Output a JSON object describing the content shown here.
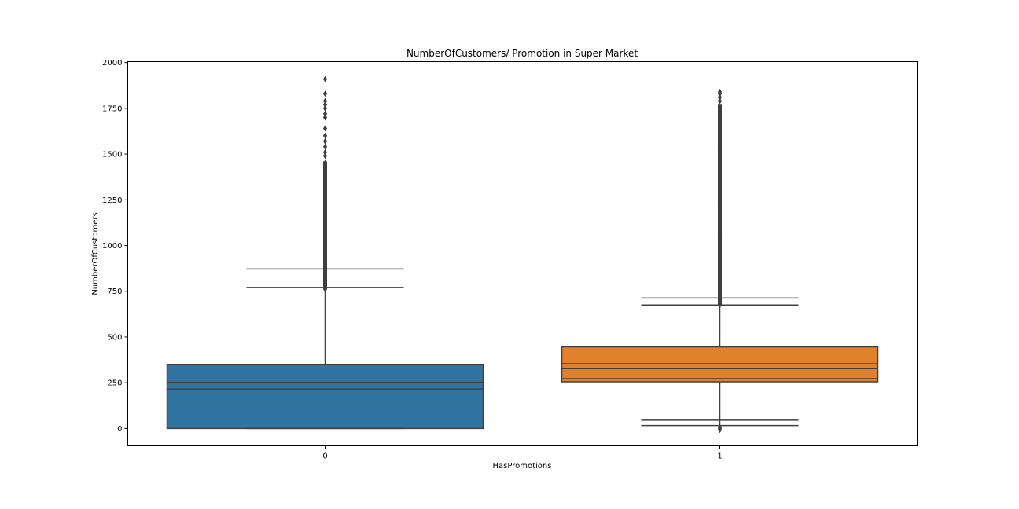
{
  "chart_data": {
    "type": "box",
    "title": "NumberOfCustomers/ Promotion in Super Market",
    "xlabel": "HasPromotions",
    "ylabel": "NumberOfCustomers",
    "categories": [
      "0",
      "1"
    ],
    "ylim": [
      -95,
      2005
    ],
    "yticks": [
      0,
      250,
      500,
      750,
      1000,
      1250,
      1500,
      1750,
      2000
    ],
    "grid": false,
    "legend": "none",
    "colors": {
      "0": "#3274a1",
      "1": "#e1812c",
      "lines": "#3f3f3f"
    },
    "boxes": [
      {
        "category": "0",
        "box_low": 0,
        "box_high": 348,
        "median": 252,
        "inner_line": 216,
        "whisker_low": 0,
        "whisker_high": 761,
        "cap_high_values": [
          770,
          872
        ],
        "cap_low_values": [
          0
        ],
        "outliers_max": 1910,
        "dense_outlier_range": [
          761,
          1460
        ],
        "sparse_outliers": [
          1490,
          1510,
          1540,
          1570,
          1600,
          1640,
          1700,
          1720,
          1750,
          1770,
          1790,
          1830,
          1910
        ]
      },
      {
        "category": "1",
        "box_low": 255,
        "box_high": 446,
        "median": 354,
        "inner_line": 327,
        "extra_line": 272,
        "whisker_low": 16,
        "whisker_high": 675,
        "cap_high_values": [
          675,
          713
        ],
        "cap_low_values": [
          16,
          45
        ],
        "outliers_max": 1840,
        "dense_outlier_range": [
          675,
          1770
        ],
        "sparse_outliers": [
          1790,
          1810,
          1830,
          1840
        ],
        "low_outliers": [
          -8,
          0,
          6
        ]
      }
    ]
  }
}
